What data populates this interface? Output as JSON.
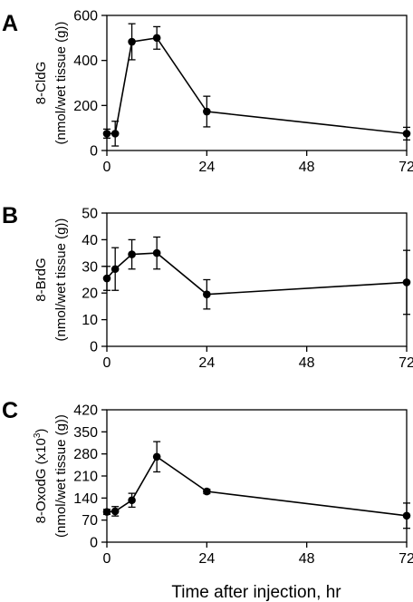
{
  "figure": {
    "x_axis_title": "Time after injection, hr"
  },
  "chart_data": [
    {
      "panel": "A",
      "type": "line",
      "ylabel_lines": [
        "8-CldG",
        "(nmol/wet tissue (g))"
      ],
      "xlim": [
        0,
        72
      ],
      "ylim": [
        0,
        600
      ],
      "xticks": [
        0,
        24,
        48,
        72
      ],
      "yticks": [
        0,
        200,
        400,
        600
      ],
      "x": [
        0,
        2,
        6,
        12,
        24,
        72
      ],
      "y": [
        75,
        75,
        483,
        500,
        173,
        75
      ],
      "err": [
        20,
        55,
        80,
        50,
        68,
        28
      ],
      "grid": false
    },
    {
      "panel": "B",
      "type": "line",
      "ylabel_lines": [
        "8-BrdG",
        "(nmol/wet tissue (g))"
      ],
      "xlim": [
        0,
        72
      ],
      "ylim": [
        0,
        50
      ],
      "xticks": [
        0,
        24,
        48,
        72
      ],
      "yticks": [
        0,
        10,
        20,
        30,
        40,
        50
      ],
      "x": [
        0,
        2,
        6,
        12,
        24,
        72
      ],
      "y": [
        25.5,
        29,
        34.5,
        35,
        19.5,
        24
      ],
      "err": [
        4.5,
        8,
        5.5,
        6,
        5.5,
        12
      ],
      "grid": false
    },
    {
      "panel": "C",
      "type": "line",
      "ylabel_lines": [
        "8-OxodG (x10",
        "3",
        ")",
        "(nmol/wet tissue (g))"
      ],
      "xlim": [
        0,
        72
      ],
      "ylim": [
        0,
        420
      ],
      "xticks": [
        0,
        24,
        48,
        72
      ],
      "yticks": [
        0,
        70,
        140,
        210,
        280,
        350,
        420
      ],
      "x": [
        0,
        2,
        6,
        12,
        24,
        72
      ],
      "y": [
        96,
        98,
        133,
        271,
        161,
        84
      ],
      "err": [
        8,
        15,
        22,
        48,
        7,
        40
      ],
      "grid": false
    }
  ]
}
